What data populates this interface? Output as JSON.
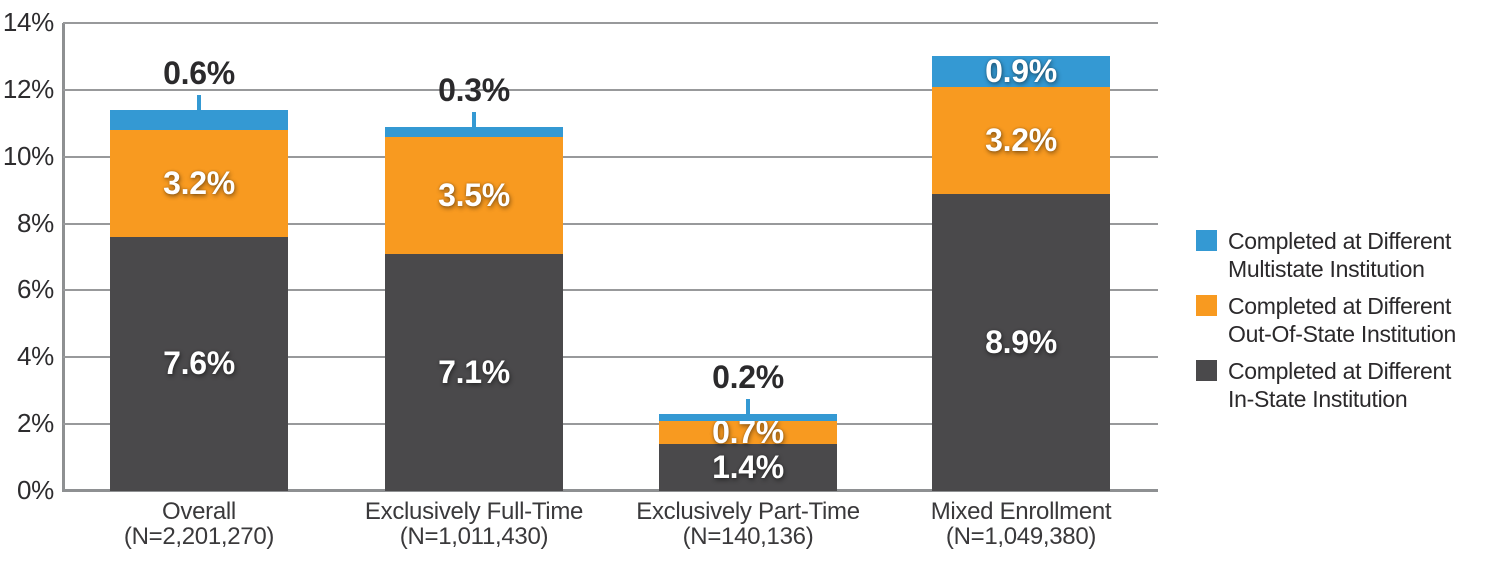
{
  "chart_data": {
    "type": "bar",
    "stacked": true,
    "title": "",
    "xlabel": "",
    "ylabel": "",
    "ylim": [
      0,
      14
    ],
    "ytick_step": 2,
    "ytick_labels": [
      "0%",
      "2%",
      "4%",
      "6%",
      "8%",
      "10%",
      "12%",
      "14%"
    ],
    "grid": true,
    "legend_position": "right",
    "categories": [
      {
        "label": "Overall",
        "sublabel": "(N=2,201,270)"
      },
      {
        "label": "Exclusively Full-Time",
        "sublabel": "(N=1,011,430)"
      },
      {
        "label": "Exclusively Part-Time",
        "sublabel": "(N=140,136)"
      },
      {
        "label": "Mixed Enrollment",
        "sublabel": "(N=1,049,380)"
      }
    ],
    "series": [
      {
        "name": "Completed at Different In-State Institution",
        "color": "#4A494B",
        "values": [
          7.6,
          7.1,
          1.4,
          8.9
        ]
      },
      {
        "name": "Completed at Different Out-Of-State Institution",
        "color": "#F89A20",
        "values": [
          3.2,
          3.5,
          0.7,
          3.2
        ]
      },
      {
        "name": "Completed at Different Multistate Institution",
        "color": "#3499D3",
        "values": [
          0.6,
          0.3,
          0.2,
          0.9
        ]
      }
    ],
    "data_label_format": "{value}%",
    "legend": [
      {
        "line1": "Completed at Different",
        "line2": "Multistate Institution",
        "color": "#3499D3"
      },
      {
        "line1": "Completed at Different",
        "line2": "Out-Of-State Institution",
        "color": "#F89A20"
      },
      {
        "line1": "Completed at Different",
        "line2": "In-State Institution",
        "color": "#4A494B"
      }
    ]
  },
  "colors": {
    "background": "#FFFFFF",
    "axis": "#8E9092",
    "gridline": "#98999B",
    "y_tick_text": "#2D2C2E",
    "category_text": "#3A393B",
    "outside_label_text": "#2B2A2C",
    "inside_label_text": "#FFFFFF",
    "legend_text": "#2B292B"
  }
}
